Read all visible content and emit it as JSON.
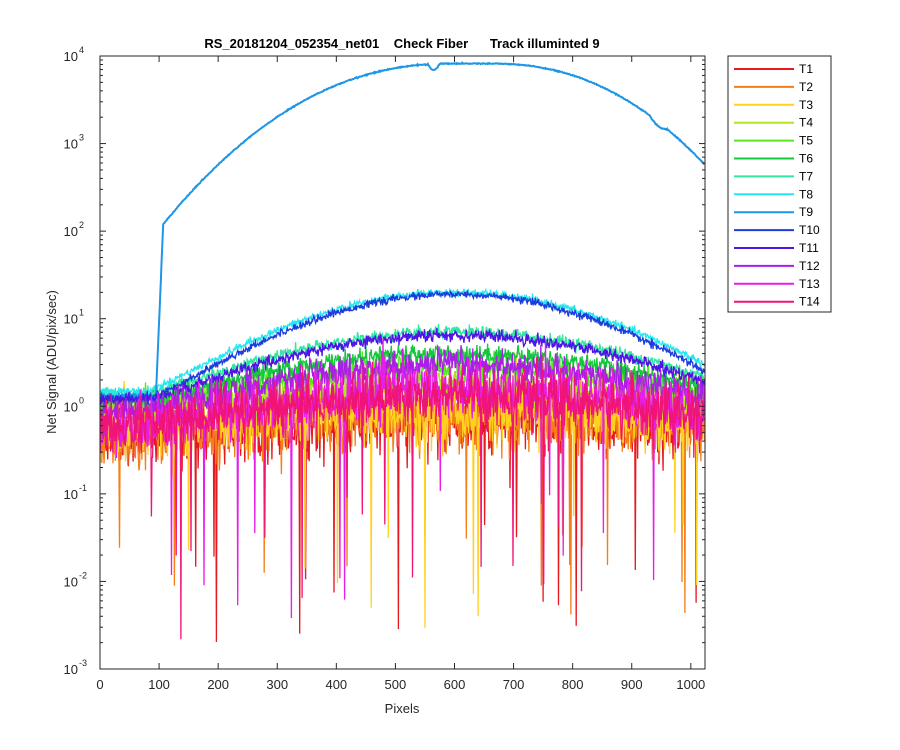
{
  "chart_data": {
    "type": "line",
    "title": "RS_20181204_052354_net01    Check Fiber      Track illuminted 9",
    "xlabel": "Pixels",
    "ylabel": "Net Signal (ADU/pix/sec)",
    "xlim": [
      0,
      1024
    ],
    "ylim": [
      0.001,
      10000
    ],
    "yscale": "log",
    "x_ticks": [
      0,
      100,
      200,
      300,
      400,
      500,
      600,
      700,
      800,
      900,
      1000
    ],
    "y_ticks": [
      {
        "value": 0.001,
        "base": "10",
        "exp": "-3"
      },
      {
        "value": 0.01,
        "base": "10",
        "exp": "-2"
      },
      {
        "value": 0.1,
        "base": "10",
        "exp": "-1"
      },
      {
        "value": 1,
        "base": "10",
        "exp": "0"
      },
      {
        "value": 10,
        "base": "10",
        "exp": "1"
      },
      {
        "value": 100,
        "base": "10",
        "exp": "2"
      },
      {
        "value": 1000,
        "base": "10",
        "exp": "3"
      },
      {
        "value": 10000,
        "base": "10",
        "exp": "4"
      }
    ],
    "grid": false,
    "legend_position": "outside-right",
    "illuminated_track": "T9",
    "series": [
      {
        "name": "T1",
        "color": "#e6191e",
        "level_mid": 0.7,
        "level_edge": 0.5,
        "noise": 0.55
      },
      {
        "name": "T2",
        "color": "#f57f17",
        "level_mid": 0.8,
        "level_edge": 0.5,
        "noise": 0.55
      },
      {
        "name": "T3",
        "color": "#ffd21f",
        "level_mid": 0.9,
        "level_edge": 0.55,
        "noise": 0.5
      },
      {
        "name": "T4",
        "color": "#b4e61e",
        "level_mid": 1.8,
        "level_edge": 0.9,
        "noise": 0.25
      },
      {
        "name": "T5",
        "color": "#5ae61e",
        "level_mid": 2.8,
        "level_edge": 1.1,
        "noise": 0.2
      },
      {
        "name": "T6",
        "color": "#14c83c",
        "level_mid": 4.0,
        "level_edge": 1.2,
        "noise": 0.15
      },
      {
        "name": "T7",
        "color": "#32e6a0",
        "level_mid": 7.0,
        "level_edge": 1.4,
        "noise": 0.1
      },
      {
        "name": "T8",
        "color": "#28e6f0",
        "level_mid": 20,
        "level_edge": 1.5,
        "noise": 0.06
      },
      {
        "name": "T9",
        "color": "#1e96e6",
        "level_mid": 8200,
        "level_edge": 1.2,
        "noise": 0.02
      },
      {
        "name": "T10",
        "color": "#1e3cdc",
        "level_mid": 19,
        "level_edge": 1.2,
        "noise": 0.06
      },
      {
        "name": "T11",
        "color": "#5014e6",
        "level_mid": 6.5,
        "level_edge": 1.2,
        "noise": 0.1
      },
      {
        "name": "T12",
        "color": "#aa1ee6",
        "level_mid": 3.0,
        "level_edge": 0.9,
        "noise": 0.25
      },
      {
        "name": "T13",
        "color": "#e61ee6",
        "level_mid": 1.6,
        "level_edge": 0.6,
        "noise": 0.45
      },
      {
        "name": "T14",
        "color": "#f01478",
        "level_mid": 1.3,
        "level_edge": 0.6,
        "noise": 0.45
      }
    ]
  }
}
